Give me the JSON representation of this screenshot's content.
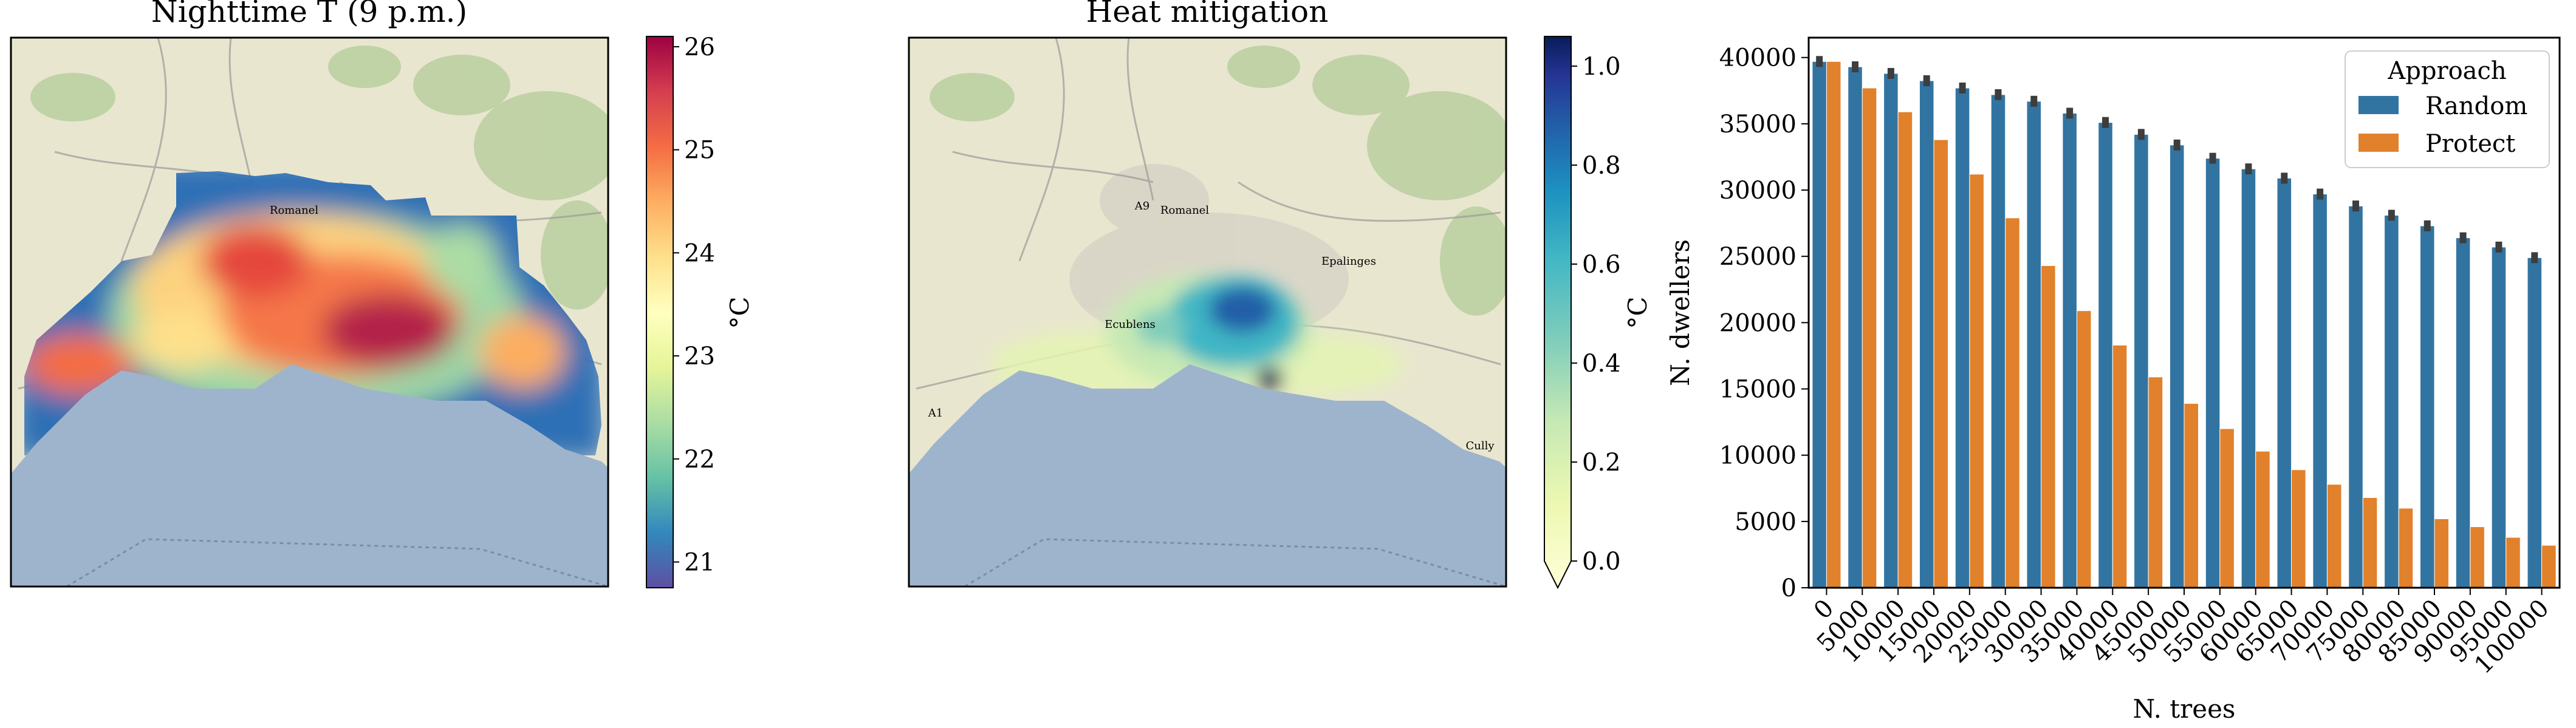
{
  "panels": {
    "left": {
      "title": "Nighttime T (9 p.m.)",
      "colorbar_label": "°C",
      "colorbar_ticks": [
        "21",
        "22",
        "23",
        "24",
        "25",
        "26"
      ],
      "colorbar_range": [
        20.75,
        26.1
      ],
      "colormap": "Spectral_r",
      "map_labels": [
        "Romanel"
      ]
    },
    "middle": {
      "title": "Heat mitigation",
      "colorbar_label": "°C",
      "colorbar_ticks": [
        "0.0",
        "0.2",
        "0.4",
        "0.6",
        "0.8",
        "1.0"
      ],
      "colorbar_range": [
        0.0,
        1.06
      ],
      "colormap": "YlGnBu",
      "map_labels": [
        "Romanel",
        "Epalinges",
        "Ecublens",
        "Cully",
        "A9",
        "A1"
      ]
    }
  },
  "colors": {
    "lake": "#9eb4cc",
    "land": "#e9e6cf",
    "random": "#3274a1",
    "protect": "#e1812c"
  },
  "chart_data": {
    "type": "bar",
    "xlabel": "N. trees",
    "ylabel": "N. dwellers",
    "categories": [
      "0",
      "5000",
      "10000",
      "15000",
      "20000",
      "25000",
      "30000",
      "35000",
      "40000",
      "45000",
      "50000",
      "55000",
      "60000",
      "65000",
      "70000",
      "75000",
      "80000",
      "85000",
      "90000",
      "95000",
      "100000"
    ],
    "ylim": [
      0,
      41500
    ],
    "yticks": [
      "0",
      "5000",
      "10000",
      "15000",
      "20000",
      "25000",
      "30000",
      "35000",
      "40000"
    ],
    "legend": {
      "title": "Approach",
      "position": "top-right"
    },
    "series": [
      {
        "name": "Random",
        "color": "#3274a1",
        "values": [
          39700,
          39300,
          38800,
          38250,
          37700,
          37200,
          36700,
          35800,
          35100,
          34200,
          33400,
          32400,
          31600,
          30900,
          29700,
          28800,
          28100,
          27300,
          26400,
          25700,
          24900
        ]
      },
      {
        "name": "Protect",
        "color": "#e1812c",
        "values": [
          39700,
          37700,
          35900,
          33800,
          31200,
          27900,
          24300,
          20900,
          18300,
          15900,
          13900,
          12000,
          10300,
          8900,
          7800,
          6800,
          6000,
          5200,
          4600,
          3800,
          3200
        ]
      }
    ]
  }
}
